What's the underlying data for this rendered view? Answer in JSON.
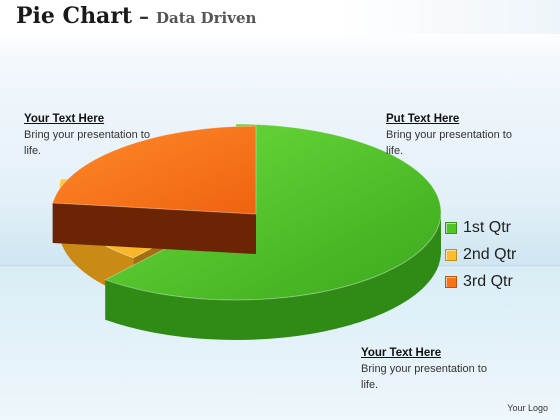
{
  "header": {
    "title_main": "Pie Chart",
    "title_dash": " – ",
    "title_sub": "Data Driven"
  },
  "notes": [
    {
      "head": "Your Text Here",
      "body": "Bring your presentation to life."
    },
    {
      "head": "Put Text Here",
      "body": "Bring your presentation to life."
    },
    {
      "head": "Your Text Here",
      "body": "Bring your presentation to life."
    }
  ],
  "footer": {
    "logo": "Your Logo"
  },
  "chart_data": {
    "type": "pie",
    "style": "3d-exploded",
    "categories": [
      "1st Qtr",
      "2nd Qtr",
      "3rd Qtr"
    ],
    "values": [
      61,
      16,
      23
    ],
    "colors": [
      "#4fc52a",
      "#fbbd2c",
      "#f6731a"
    ],
    "legend_position": "right"
  }
}
